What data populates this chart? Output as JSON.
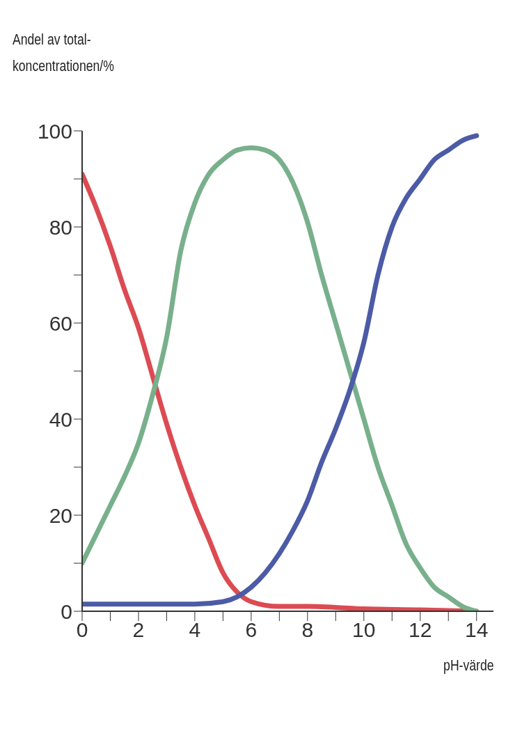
{
  "chart_data": {
    "type": "line",
    "xlabel": "pH-värde",
    "ylabel": "Andel av total-\nkoncentrationen/%",
    "xlim": [
      0,
      14.6
    ],
    "ylim": [
      0,
      100
    ],
    "xticks": [
      0,
      {
        "value": 1,
        "label": null
      },
      2,
      {
        "value": 3,
        "label": null
      },
      4,
      {
        "value": 5,
        "label": null
      },
      6,
      {
        "value": 7,
        "label": null
      },
      8,
      {
        "value": 9,
        "label": null
      },
      10,
      {
        "value": 11,
        "label": null
      },
      12,
      {
        "value": 13,
        "label": null
      },
      14
    ],
    "yticks": [
      0,
      {
        "value": 10,
        "label": null
      },
      20,
      {
        "value": 30,
        "label": null
      },
      40,
      {
        "value": 50,
        "label": null
      },
      60,
      {
        "value": 70,
        "label": null
      },
      80,
      {
        "value": 90,
        "label": null
      },
      100
    ],
    "grid": false,
    "legend": false,
    "marker": "none",
    "line_style": "solid",
    "series": [
      {
        "color": "#dc4b52",
        "x": [
          0,
          0.5,
          1,
          1.5,
          2,
          2.5,
          3,
          3.5,
          4,
          4.5,
          5,
          5.5,
          6,
          7,
          8,
          10,
          12,
          14
        ],
        "values": [
          91,
          84,
          76,
          67,
          59,
          49,
          39,
          30,
          22,
          15,
          8,
          4,
          2,
          1,
          1,
          0.5,
          0.3,
          0
        ]
      },
      {
        "color": "#78b08c",
        "x": [
          0,
          0.5,
          1,
          1.5,
          2,
          2.5,
          3,
          3.5,
          4,
          4.5,
          5,
          5.5,
          6,
          6.5,
          7,
          7.5,
          8,
          8.5,
          9,
          9.5,
          10,
          10.5,
          11,
          11.5,
          12,
          12.5,
          13,
          13.5,
          14
        ],
        "values": [
          10,
          16,
          22,
          28,
          35,
          45,
          57,
          75,
          85,
          91,
          94,
          96,
          96.5,
          96,
          94,
          89,
          81,
          70,
          60,
          50,
          40,
          30,
          22,
          14,
          9,
          5,
          3,
          1,
          0
        ]
      },
      {
        "color": "#4c5ba6",
        "x": [
          0,
          1,
          2,
          3,
          4,
          5,
          5.5,
          6,
          6.5,
          7,
          7.5,
          8,
          8.5,
          9,
          9.5,
          10,
          10.5,
          11,
          11.5,
          12,
          12.5,
          13,
          13.5,
          14
        ],
        "values": [
          1.5,
          1.5,
          1.5,
          1.5,
          1.5,
          2,
          3,
          5,
          8,
          12,
          17,
          23,
          31,
          38,
          46,
          56,
          70,
          80,
          86,
          90,
          94,
          96,
          98,
          99
        ]
      }
    ]
  }
}
